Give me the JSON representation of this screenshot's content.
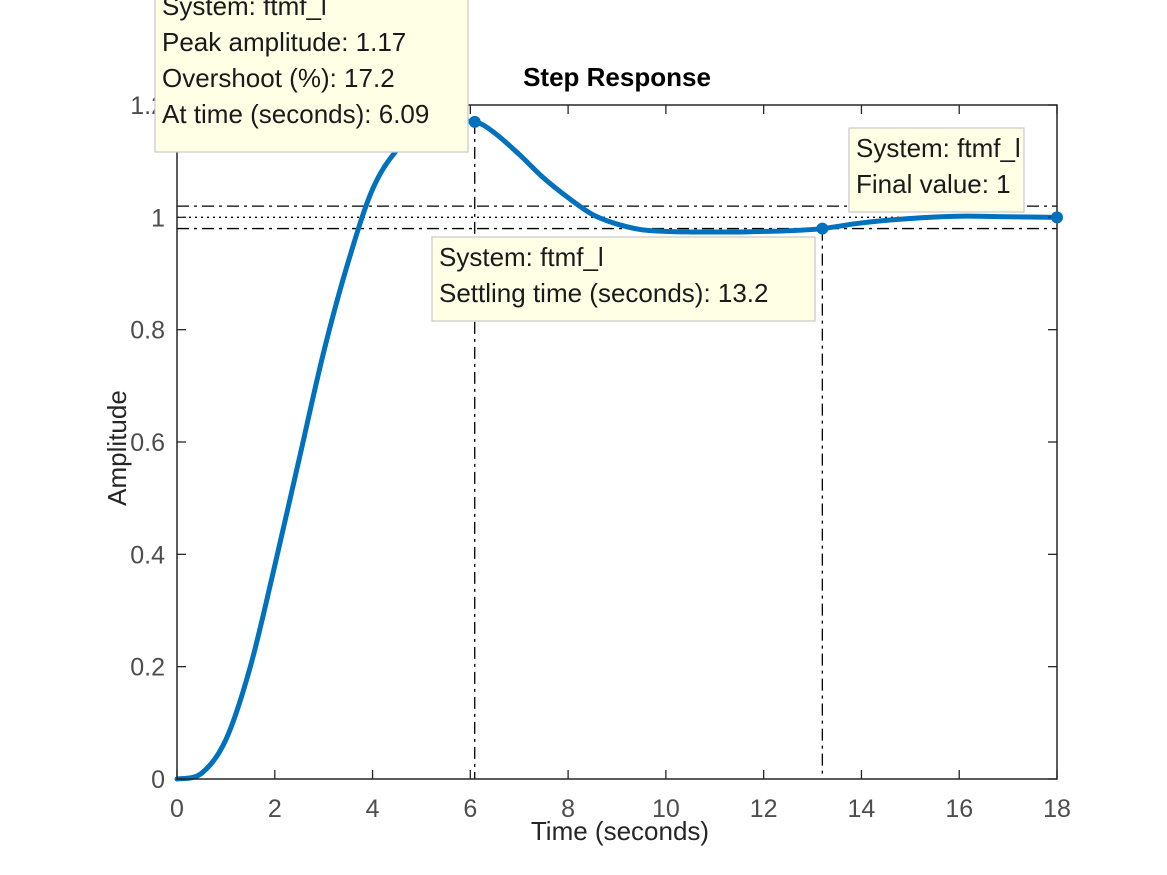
{
  "chart_data": {
    "type": "line",
    "title": "Step Response",
    "xlabel": "Time (seconds)",
    "ylabel": "Amplitude",
    "xlim": [
      0,
      18
    ],
    "ylim": [
      0,
      1.2
    ],
    "xticks": [
      "0",
      "2",
      "4",
      "6",
      "8",
      "10",
      "12",
      "14",
      "16",
      "18"
    ],
    "yticks": [
      "0",
      "0.2",
      "0.4",
      "0.6",
      "0.8",
      "1",
      "1.2"
    ],
    "grid": false,
    "colors": {
      "line": "#0072BD",
      "tip_bg": "#FFFFE6",
      "axes": "#262626"
    },
    "series": [
      {
        "name": "ftmf_l",
        "x": [
          0,
          0.5,
          1,
          1.5,
          2,
          2.5,
          3,
          3.5,
          4,
          4.5,
          5,
          5.5,
          6.09,
          6.5,
          7,
          7.5,
          8,
          8.5,
          9,
          9.5,
          10,
          10.5,
          11,
          11.5,
          12,
          12.5,
          13.2,
          14,
          15,
          16,
          17,
          18
        ],
        "y": [
          0,
          0.01,
          0.07,
          0.2,
          0.38,
          0.57,
          0.76,
          0.92,
          1.05,
          1.12,
          1.155,
          1.168,
          1.17,
          1.15,
          1.112,
          1.07,
          1.035,
          1.005,
          0.988,
          0.978,
          0.975,
          0.974,
          0.974,
          0.974,
          0.975,
          0.976,
          0.98,
          0.99,
          0.998,
          1.002,
          1.001,
          1.0
        ]
      }
    ],
    "settling_band": [
      0.98,
      1.02
    ],
    "datatips": {
      "peak": {
        "lines": [
          "System: ftmf_l",
          "Peak amplitude: 1.17",
          "Overshoot (%): 17.2",
          "At time (seconds): 6.09"
        ],
        "x": 6.09,
        "y": 1.17
      },
      "settling": {
        "lines": [
          "System: ftmf_l",
          "Settling time (seconds): 13.2"
        ],
        "x": 13.2,
        "y": 0.98
      },
      "final": {
        "lines": [
          "System: ftmf_l",
          "Final value: 1"
        ],
        "x": 18,
        "y": 1.0
      }
    }
  }
}
